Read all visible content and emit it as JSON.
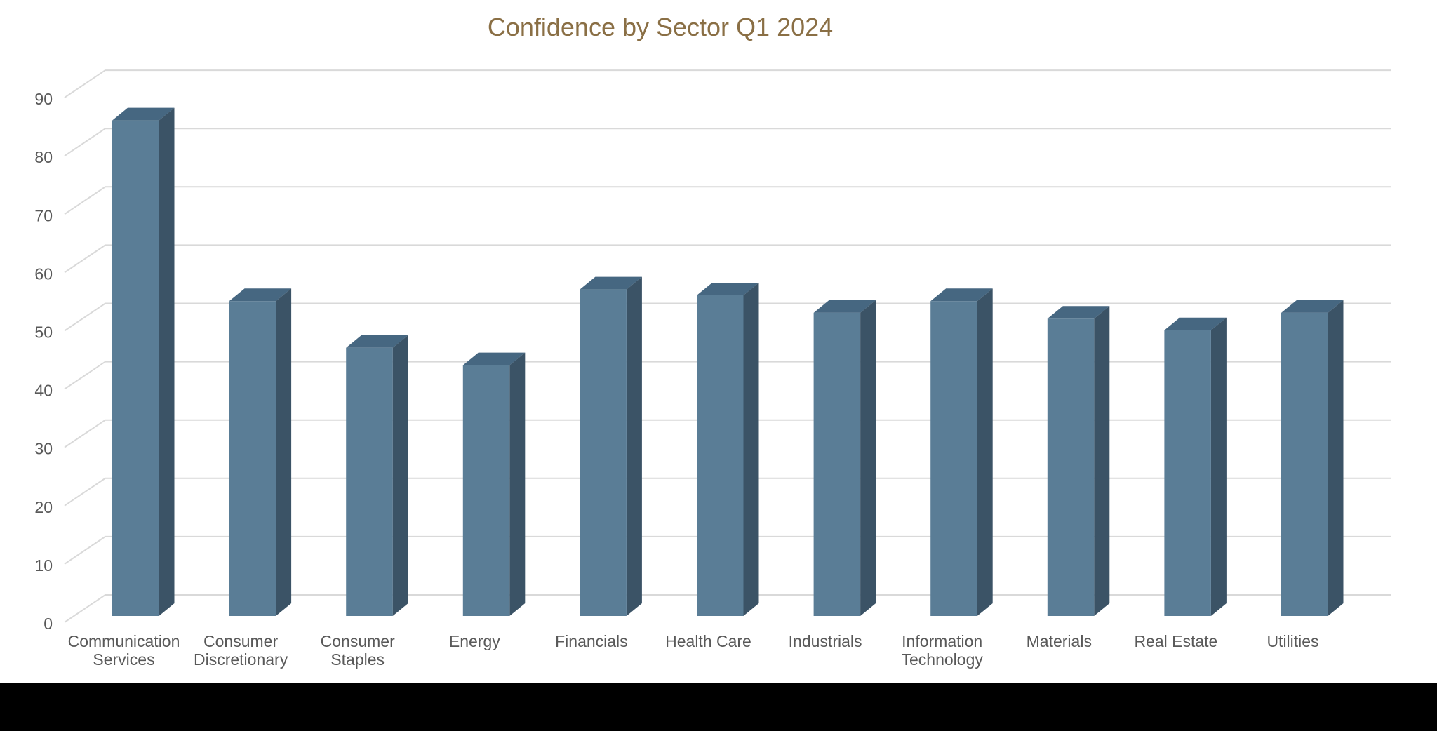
{
  "page": {
    "background": "#FFFFFF",
    "bottom_bar_color": "#000000"
  },
  "chart_data": {
    "type": "bar",
    "variant": "3d-column",
    "title": "Confidence by Sector Q1 2024",
    "categories": [
      "Communication Services",
      "Consumer Discretionary",
      "Consumer Staples",
      "Energy",
      "Financials",
      "Health Care",
      "Industrials",
      "Information Technology",
      "Materials",
      "Real Estate",
      "Utilities"
    ],
    "values": [
      85,
      54,
      46,
      43,
      56,
      55,
      52,
      54,
      51,
      49,
      52
    ],
    "category_label_lines": [
      [
        "Communication",
        "Services"
      ],
      [
        "Consumer",
        "Discretionary"
      ],
      [
        "Consumer",
        "Staples"
      ],
      [
        "Energy"
      ],
      [
        "Financials"
      ],
      [
        "Health Care"
      ],
      [
        "Industrials"
      ],
      [
        "Information",
        "Technology"
      ],
      [
        "Materials"
      ],
      [
        "Real Estate"
      ],
      [
        "Utilities"
      ]
    ],
    "xlabel": "",
    "ylabel": "",
    "yticks": [
      0,
      10,
      20,
      30,
      40,
      50,
      60,
      70,
      80,
      90
    ],
    "ylim": [
      0,
      90
    ],
    "grid": true,
    "legend": false,
    "colors": {
      "bar_front": "#5A7D96",
      "bar_top": "#466781",
      "bar_side": "#3B5366",
      "gridline": "#D9D9D9",
      "tick_label": "#595959",
      "category_label": "#595959",
      "title": "#8A6F45",
      "plot_background": "#FFFFFF"
    }
  }
}
